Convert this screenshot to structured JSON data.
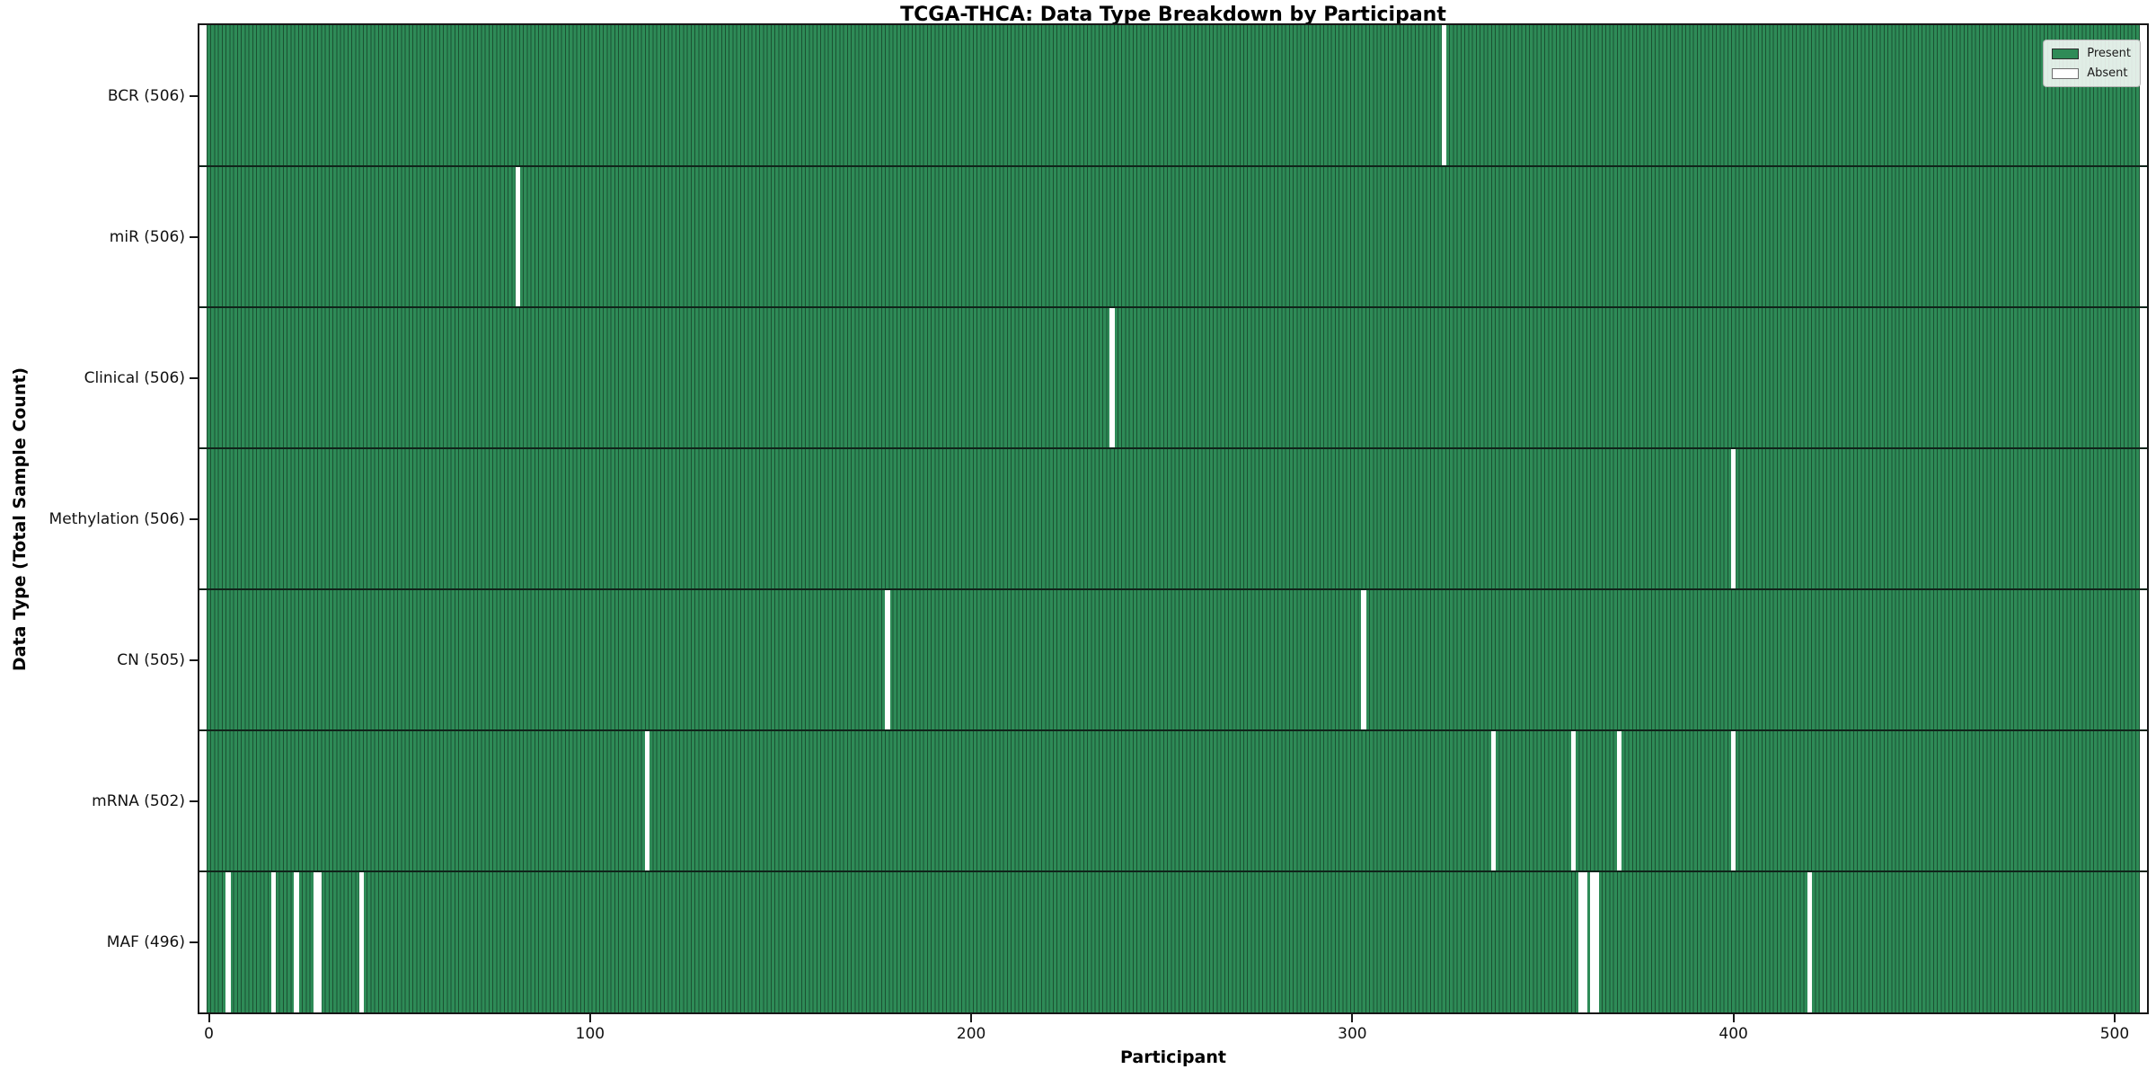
{
  "title": "TCGA-THCA: Data Type Breakdown by Participant",
  "legend": {
    "present_label": "Present",
    "absent_label": "Absent"
  },
  "colors": {
    "present": "#2E8B57",
    "absent": "#ffffff",
    "bar_edge": "rgba(0,0,0,0.42)",
    "row_separator": "#10241a",
    "plot_border": "#171717",
    "legend_border": "#b3b3b3"
  },
  "chart_data": {
    "type": "heatmap",
    "title": "TCGA-THCA: Data Type Breakdown by Participant",
    "xlabel": "Participant",
    "ylabel": "Data Type (Total Sample Count)",
    "legend_entries": [
      "Present",
      "Absent"
    ],
    "legend_position": "upper right",
    "grid": false,
    "total_participants": 507,
    "xlim": [
      -2.5,
      508.5
    ],
    "x_ticks": [
      0,
      100,
      200,
      300,
      400,
      500
    ],
    "rows": [
      {
        "data_type": "BCR",
        "label": "BCR (506)",
        "present_count": 506,
        "absent_participants": [
          324
        ]
      },
      {
        "data_type": "miR",
        "label": "miR (506)",
        "present_count": 506,
        "absent_participants": [
          81
        ]
      },
      {
        "data_type": "Clinical",
        "label": "Clinical (506)",
        "present_count": 506,
        "absent_participants": [
          237
        ]
      },
      {
        "data_type": "Methylation",
        "label": "Methylation (506)",
        "present_count": 506,
        "absent_participants": [
          400
        ]
      },
      {
        "data_type": "CN",
        "label": "CN (505)",
        "present_count": 505,
        "absent_participants": [
          178,
          303
        ]
      },
      {
        "data_type": "mRNA",
        "label": "mRNA (502)",
        "present_count": 502,
        "absent_participants": [
          115,
          337,
          358,
          370,
          400
        ]
      },
      {
        "data_type": "MAF",
        "label": "MAF (496)",
        "present_count": 496,
        "absent_participants": [
          5,
          17,
          23,
          28,
          29,
          40,
          360,
          361,
          363,
          364,
          420
        ]
      }
    ]
  }
}
